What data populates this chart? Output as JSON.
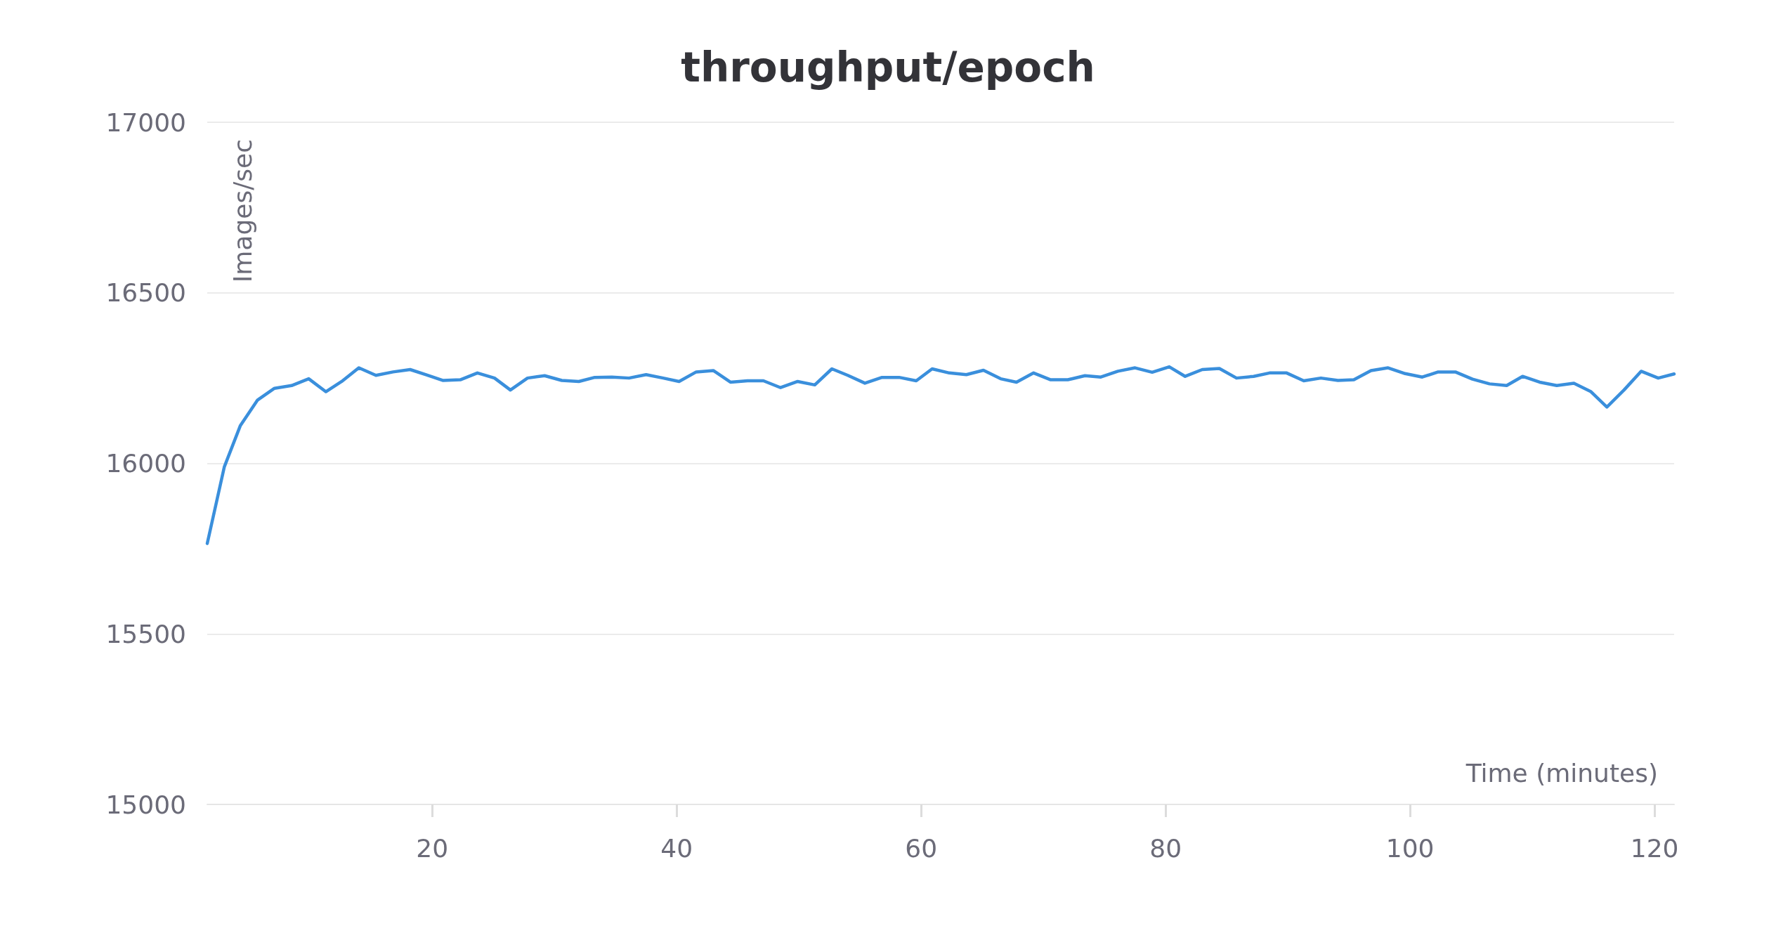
{
  "chart_data": {
    "type": "line",
    "title": "throughput/epoch",
    "xlabel": "Time (minutes)",
    "ylabel": "Images/sec",
    "x": [
      1.6,
      3.0,
      4.3,
      5.7,
      7.1,
      8.5,
      9.9,
      11.3,
      12.6,
      14.0,
      15.4,
      16.8,
      18.2,
      19.5,
      20.9,
      22.3,
      23.7,
      25.1,
      26.4,
      27.8,
      29.2,
      30.6,
      32.0,
      33.3,
      34.7,
      36.1,
      37.5,
      38.9,
      40.2,
      41.6,
      43.0,
      44.4,
      45.8,
      47.1,
      48.5,
      49.9,
      51.3,
      52.7,
      54.0,
      55.4,
      56.8,
      58.2,
      59.6,
      60.9,
      62.3,
      63.7,
      65.1,
      66.5,
      67.8,
      69.2,
      70.6,
      72.0,
      73.4,
      74.7,
      76.1,
      77.5,
      78.9,
      80.3,
      81.6,
      83.0,
      84.4,
      85.8,
      87.2,
      88.5,
      89.9,
      91.3,
      92.7,
      94.1,
      95.4,
      96.8,
      98.2,
      99.6,
      101.0,
      102.3,
      103.7,
      105.1,
      106.5,
      107.9,
      109.2,
      110.6,
      112.0,
      113.4,
      114.8,
      116.1,
      117.5,
      118.9,
      120.3,
      121.6
    ],
    "series": [
      {
        "color": "#3a8fdc",
        "values": [
          15765,
          15990,
          16110,
          16185,
          16220,
          16228,
          16248,
          16210,
          16240,
          16280,
          16258,
          16268,
          16275,
          16260,
          16243,
          16245,
          16265,
          16250,
          16215,
          16250,
          16257,
          16243,
          16240,
          16252,
          16253,
          16250,
          16260,
          16250,
          16240,
          16268,
          16272,
          16238,
          16242,
          16242,
          16222,
          16240,
          16230,
          16277,
          16258,
          16235,
          16252,
          16252,
          16242,
          16277,
          16265,
          16260,
          16273,
          16248,
          16238,
          16265,
          16245,
          16245,
          16257,
          16253,
          16270,
          16280,
          16267,
          16283,
          16255,
          16275,
          16278,
          16250,
          16255,
          16265,
          16265,
          16242,
          16250,
          16243,
          16245,
          16272,
          16280,
          16263,
          16253,
          16268,
          16268,
          16247,
          16233,
          16228,
          16255,
          16238,
          16228,
          16235,
          16210,
          16165,
          16215,
          16270,
          16250,
          16262
        ]
      }
    ],
    "xlim": [
      1.6,
      121.6
    ],
    "xticks": [
      20,
      40,
      60,
      80,
      100,
      120
    ],
    "ylim": [
      15000,
      17000
    ],
    "yticks": [
      15000,
      15500,
      16000,
      16500,
      17000
    ],
    "grid": "y",
    "marker": "none",
    "line_style": "solid"
  }
}
